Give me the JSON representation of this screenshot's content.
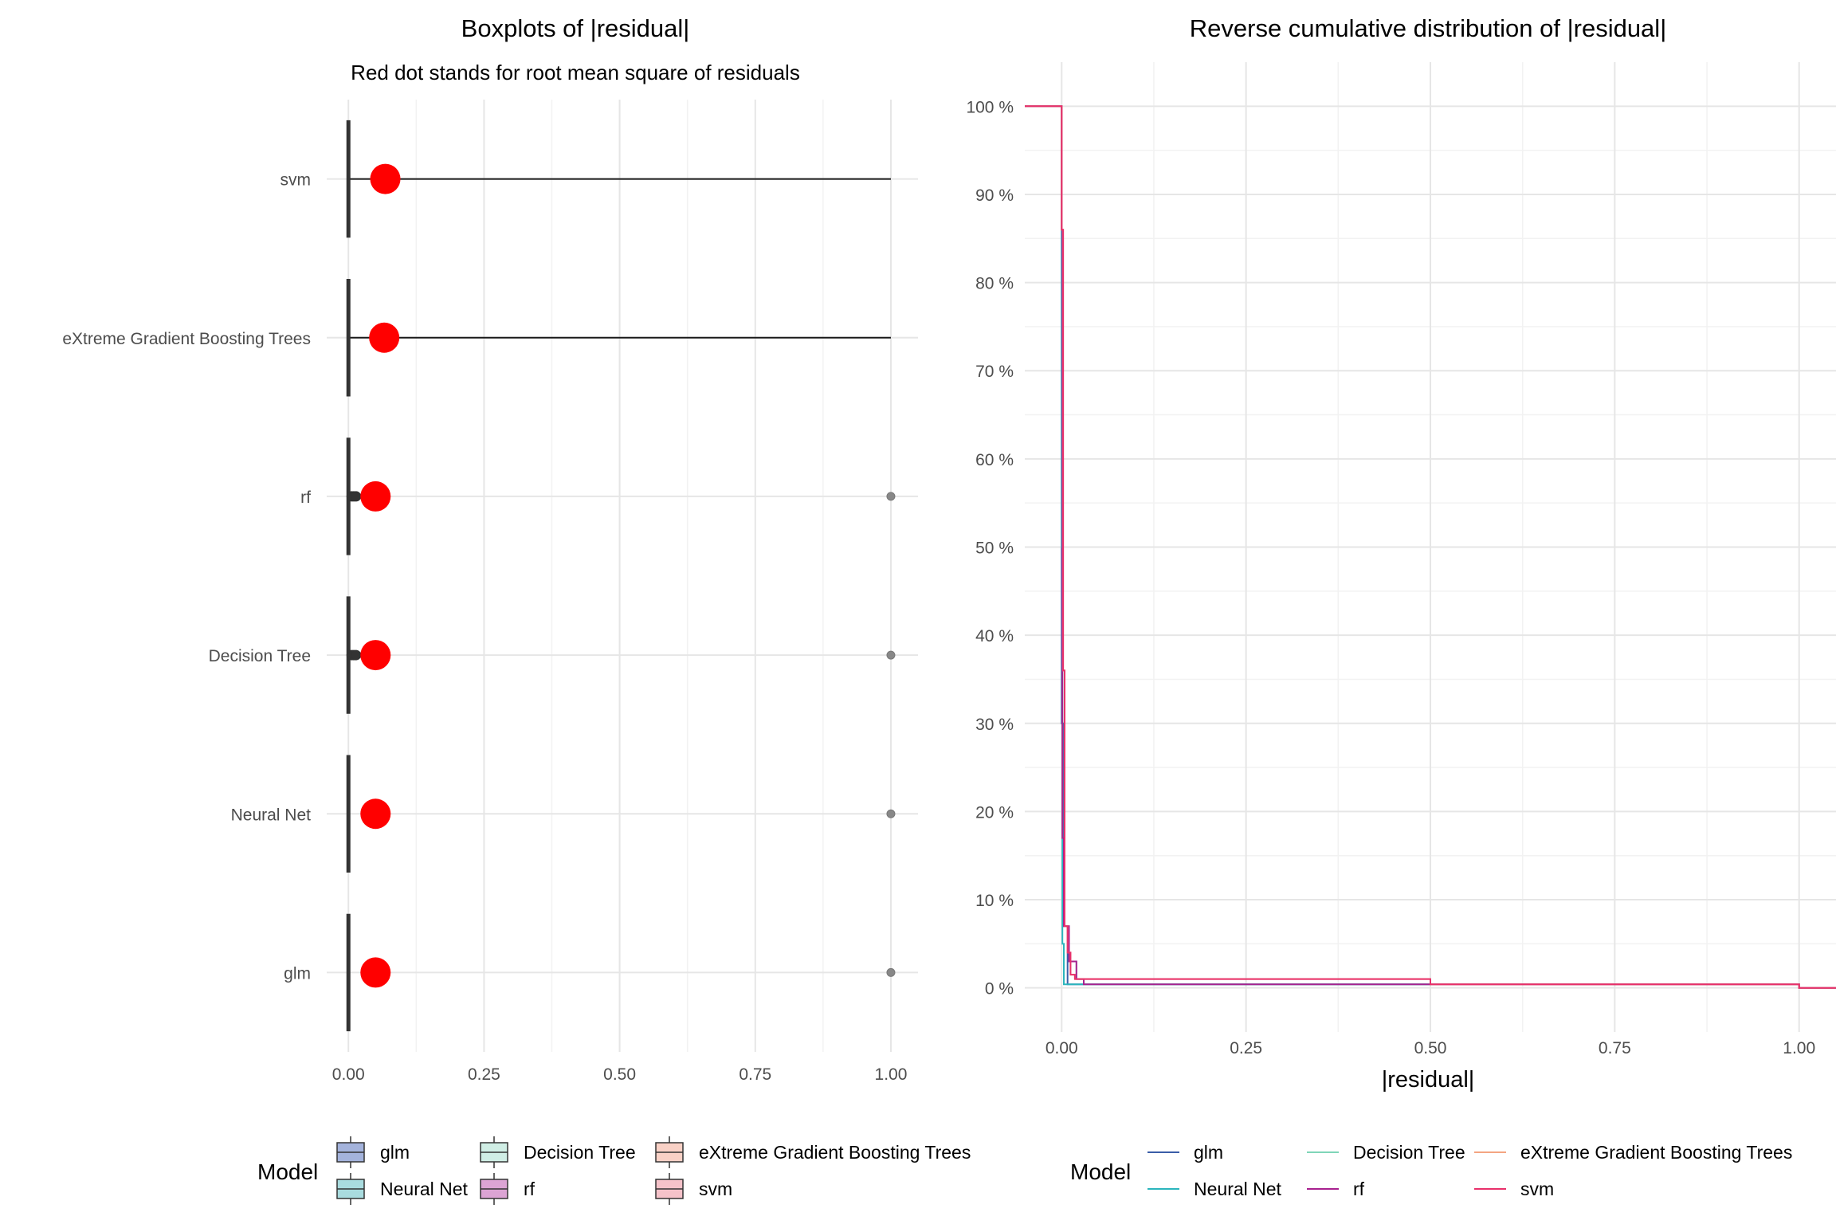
{
  "chart_data": [
    {
      "type": "boxplot",
      "orientation": "horizontal",
      "title": "Boxplots of |residual|",
      "subtitle": "Red dot stands for root mean square of residuals",
      "categories": [
        "svm",
        "eXtreme Gradient Boosting Trees",
        "rf",
        "Decision Tree",
        "Neural Net",
        "glm"
      ],
      "xlim": [
        -0.04,
        1.05
      ],
      "x_ticks": [
        0,
        0.25,
        0.5,
        0.75,
        1.0
      ],
      "x_tick_labels": [
        "0.00",
        "0.25",
        "0.50",
        "0.75",
        "1.00"
      ],
      "xlabel": "",
      "ylabel": "",
      "grid": true,
      "series": [
        {
          "name": "svm",
          "median": 0.0,
          "q1": 0.0,
          "q3": 0.0,
          "whisker_high": 1.0,
          "outliers": [],
          "rmse": 0.068
        },
        {
          "name": "eXtreme Gradient Boosting Trees",
          "median": 0.0,
          "q1": 0.0,
          "q3": 0.0,
          "whisker_high": 1.0,
          "outliers": [],
          "rmse": 0.066
        },
        {
          "name": "rf",
          "median": 0.0,
          "q1": 0.0,
          "q3": 0.0,
          "whisker_high": 0.0,
          "outliers": [
            0.006,
            0.01,
            0.014,
            1.0
          ],
          "rmse": 0.05
        },
        {
          "name": "Decision Tree",
          "median": 0.0,
          "q1": 0.0,
          "q3": 0.0,
          "whisker_high": 0.0,
          "outliers": [
            0.006,
            0.01,
            0.014,
            1.0
          ],
          "rmse": 0.05
        },
        {
          "name": "Neural Net",
          "median": 0.0,
          "q1": 0.0,
          "q3": 0.0,
          "whisker_high": 0.0,
          "outliers": [
            1.0
          ],
          "rmse": 0.05
        },
        {
          "name": "glm",
          "median": 0.0,
          "q1": 0.0,
          "q3": 0.0,
          "whisker_high": 0.0,
          "outliers": [
            1.0
          ],
          "rmse": 0.05
        }
      ],
      "legend": {
        "title": "Model",
        "placement": "bottom",
        "items": [
          {
            "name": "glm",
            "color": "#a4b3dc"
          },
          {
            "name": "Neural Net",
            "color": "#a9dcdf"
          },
          {
            "name": "Decision Tree",
            "color": "#d0eee5"
          },
          {
            "name": "rf",
            "color": "#dca4d4"
          },
          {
            "name": "eXtreme Gradient Boosting Trees",
            "color": "#f9d1c6"
          },
          {
            "name": "svm",
            "color": "#f5c2c9"
          }
        ]
      }
    },
    {
      "type": "line",
      "step": true,
      "title": "Reverse cumulative distribution of |residual|",
      "xlabel": "|residual|",
      "ylabel": "",
      "xlim": [
        -0.05,
        1.05
      ],
      "ylim": [
        -0.05,
        1.05
      ],
      "x_ticks": [
        0,
        0.25,
        0.5,
        0.75,
        1.0
      ],
      "x_tick_labels": [
        "0.00",
        "0.25",
        "0.50",
        "0.75",
        "1.00"
      ],
      "y_ticks": [
        0,
        0.1,
        0.2,
        0.3,
        0.4,
        0.5,
        0.6,
        0.7,
        0.8,
        0.9,
        1.0
      ],
      "y_tick_labels": [
        "0 %",
        "10 %",
        "20 %",
        "30 %",
        "40 %",
        "50 %",
        "60 %",
        "70 %",
        "80 %",
        "90 %",
        "100 %"
      ],
      "grid": true,
      "series": [
        {
          "name": "glm",
          "color": "#3a5da8",
          "x": [
            -0.05,
            0.0,
            0.0,
            0.002,
            0.002,
            0.008,
            0.008,
            1.0,
            1.0,
            1.05
          ],
          "y": [
            1.0,
            1.0,
            0.3,
            0.3,
            0.07,
            0.07,
            0.004,
            0.004,
            0.0,
            0.0
          ]
        },
        {
          "name": "Neural Net",
          "color": "#2bb5bd",
          "x": [
            -0.05,
            0.0,
            0.0,
            0.001,
            0.001,
            0.003,
            0.003,
            1.0,
            1.0,
            1.05
          ],
          "y": [
            1.0,
            1.0,
            0.5,
            0.5,
            0.05,
            0.05,
            0.004,
            0.004,
            0.0,
            0.0
          ]
        },
        {
          "name": "Decision Tree",
          "color": "#7fd6b8",
          "x": [
            -0.05,
            0.0,
            0.0,
            0.001,
            0.001,
            0.003,
            0.003,
            0.01,
            0.01,
            0.02,
            0.02,
            0.03,
            0.03,
            1.0,
            1.0,
            1.05
          ],
          "y": [
            1.0,
            1.0,
            0.86,
            0.86,
            0.17,
            0.17,
            0.07,
            0.07,
            0.03,
            0.03,
            0.01,
            0.01,
            0.004,
            0.004,
            0.0,
            0.0
          ]
        },
        {
          "name": "rf",
          "color": "#a8218f",
          "x": [
            -0.05,
            0.0,
            0.0,
            0.001,
            0.001,
            0.003,
            0.003,
            0.01,
            0.01,
            0.02,
            0.02,
            0.03,
            0.03,
            1.0,
            1.0,
            1.05
          ],
          "y": [
            1.0,
            1.0,
            0.86,
            0.86,
            0.17,
            0.17,
            0.07,
            0.07,
            0.03,
            0.03,
            0.01,
            0.01,
            0.004,
            0.004,
            0.0,
            0.0
          ]
        },
        {
          "name": "eXtreme Gradient Boosting Trees",
          "color": "#f4a582",
          "x": [
            -0.05,
            0.0,
            0.0,
            0.002,
            0.002,
            0.004,
            0.004,
            0.008,
            0.008,
            0.012,
            0.012,
            0.018,
            0.018,
            0.5,
            0.5,
            1.0,
            1.0,
            1.05
          ],
          "y": [
            1.0,
            1.0,
            0.86,
            0.86,
            0.36,
            0.36,
            0.07,
            0.07,
            0.04,
            0.04,
            0.015,
            0.015,
            0.01,
            0.01,
            0.004,
            0.004,
            0.0,
            0.0
          ]
        },
        {
          "name": "svm",
          "color": "#e8306b",
          "x": [
            -0.05,
            0.0,
            0.0,
            0.002,
            0.002,
            0.004,
            0.004,
            0.008,
            0.008,
            0.012,
            0.012,
            0.018,
            0.018,
            0.5,
            0.5,
            1.0,
            1.0,
            1.05
          ],
          "y": [
            1.0,
            1.0,
            0.86,
            0.86,
            0.36,
            0.36,
            0.07,
            0.07,
            0.04,
            0.04,
            0.015,
            0.015,
            0.01,
            0.01,
            0.004,
            0.004,
            0.0,
            0.0
          ]
        }
      ],
      "legend": {
        "title": "Model",
        "placement": "bottom",
        "items": [
          {
            "name": "glm",
            "color": "#3a5da8"
          },
          {
            "name": "Neural Net",
            "color": "#2bb5bd"
          },
          {
            "name": "Decision Tree",
            "color": "#7fd6b8"
          },
          {
            "name": "rf",
            "color": "#a8218f"
          },
          {
            "name": "eXtreme Gradient Boosting Trees",
            "color": "#f4a582"
          },
          {
            "name": "svm",
            "color": "#e8306b"
          }
        ]
      }
    }
  ]
}
